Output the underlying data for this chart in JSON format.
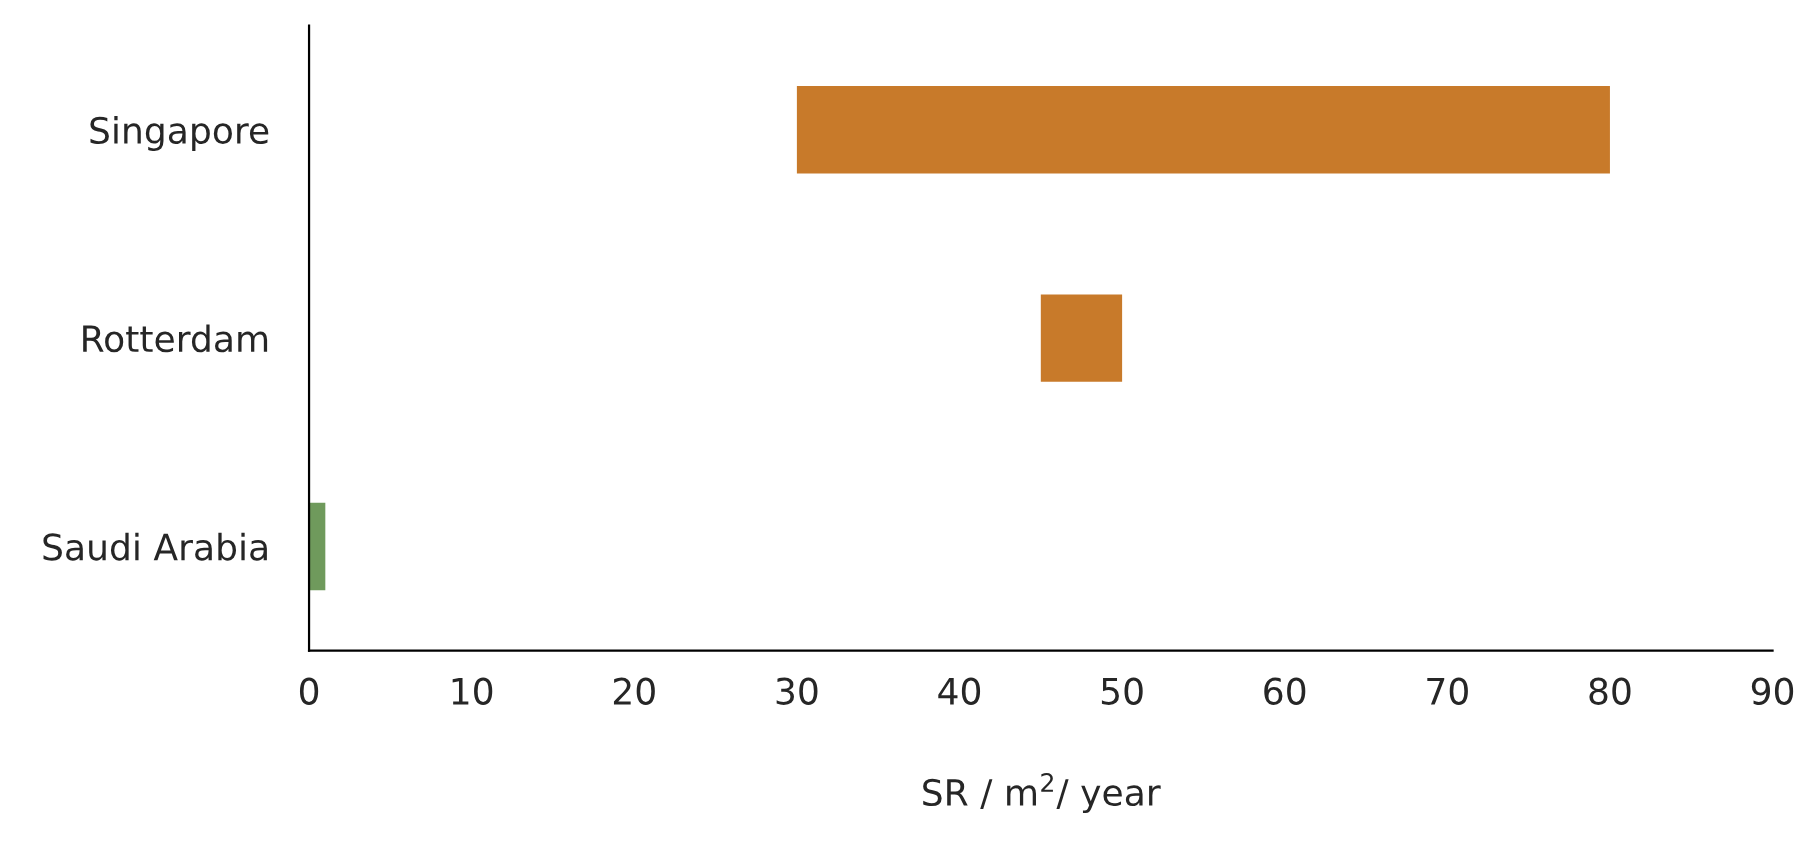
{
  "chart_data": {
    "type": "bar",
    "orientation": "horizontal",
    "xlabel": "SR / m$^{2}$/ year",
    "categories": [
      "Singapore",
      "Rotterdam",
      "Saudi Arabia"
    ],
    "base": [
      30,
      45,
      0
    ],
    "values": [
      50,
      5,
      1
    ],
    "colors": [
      "#c87a2a",
      "#c87a2a",
      "#6f9a5c"
    ],
    "xlim": [
      0,
      90
    ],
    "xticks": [
      0,
      10,
      20,
      30,
      40,
      50,
      60,
      70,
      80,
      90
    ],
    "grid": false,
    "legend": false
  }
}
